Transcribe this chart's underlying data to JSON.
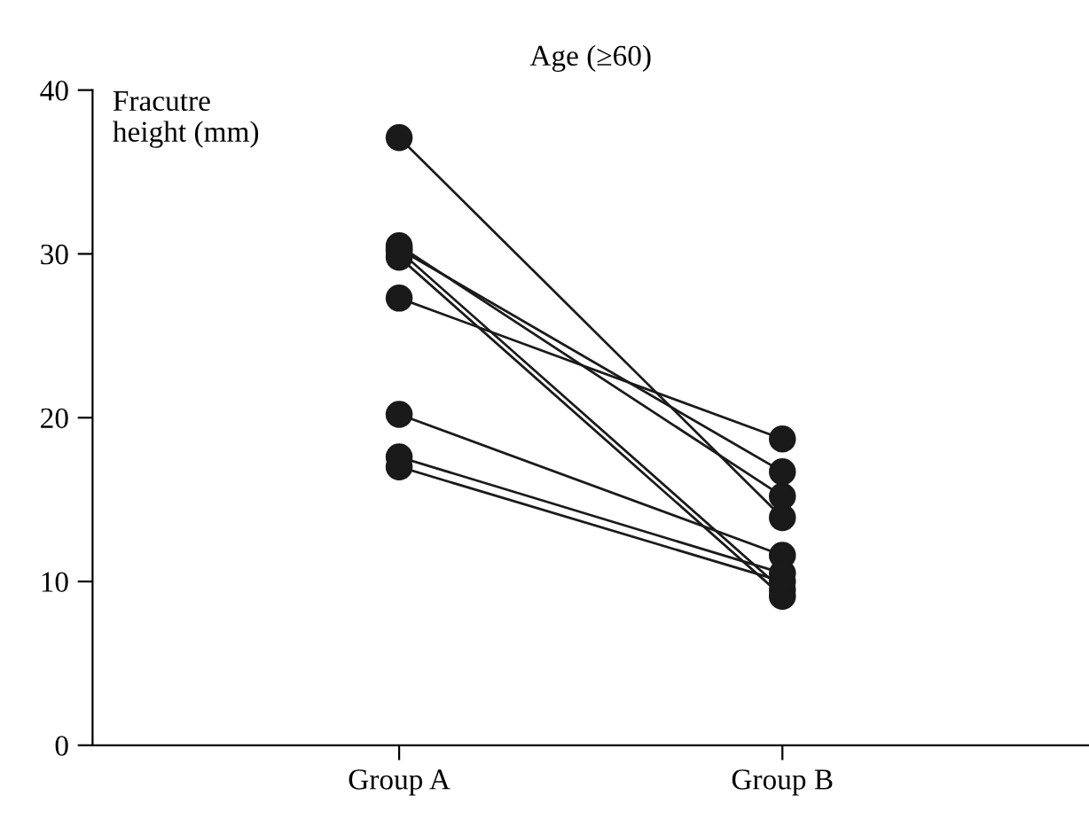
{
  "chart_data": {
    "type": "line",
    "title": "Age (≥60)",
    "ylabel": "Fracutre\nheight (mm)",
    "categories": [
      "Group A",
      "Group B"
    ],
    "series": [
      {
        "color": "#1a1a1a",
        "values": [
          37.1,
          13.9
        ]
      },
      {
        "color": "#1a1a1a",
        "values": [
          30.5,
          15.2
        ]
      },
      {
        "color": "#1a1a1a",
        "values": [
          30.3,
          16.7
        ]
      },
      {
        "color": "#1a1a1a",
        "values": [
          30.2,
          9.5
        ]
      },
      {
        "color": "#1a1a1a",
        "values": [
          29.8,
          9.1
        ]
      },
      {
        "color": "#1a1a1a",
        "values": [
          27.3,
          18.7
        ]
      },
      {
        "color": "#1a1a1a",
        "values": [
          20.2,
          11.6
        ]
      },
      {
        "color": "#1a1a1a",
        "values": [
          17.6,
          10.5
        ]
      },
      {
        "color": "#1a1a1a",
        "values": [
          17.0,
          10.0
        ]
      }
    ],
    "ylim": [
      0,
      40
    ],
    "yticks": [
      0,
      10,
      20,
      30,
      40
    ],
    "marker": "circle",
    "line_style": "solid",
    "grid": false,
    "legend": false
  }
}
